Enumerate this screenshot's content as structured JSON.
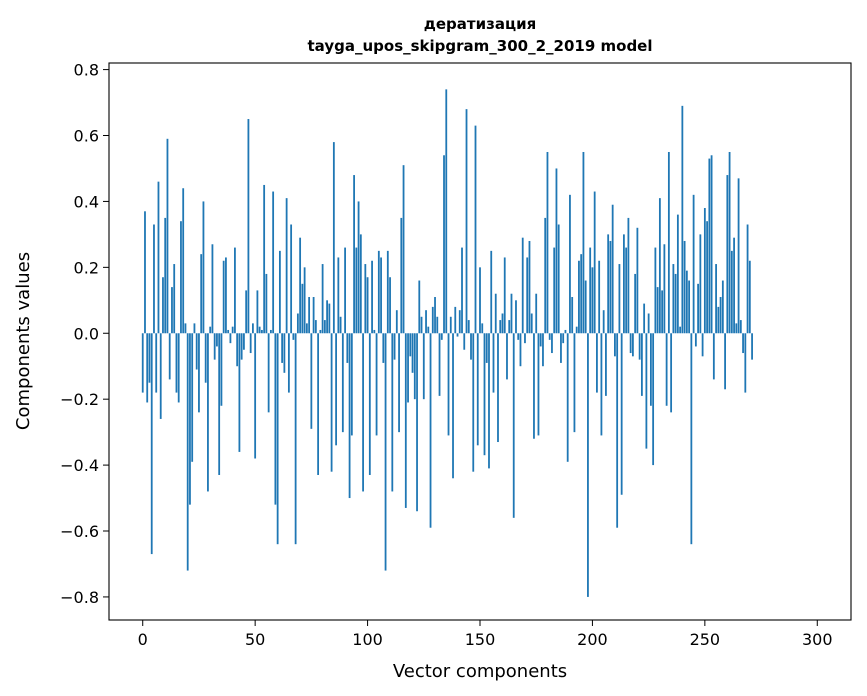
{
  "chart_data": {
    "type": "bar",
    "title_line1": "дератизация",
    "title_line2": "tayga_upos_skipgram_300_2_2019 model",
    "xlabel": "Vector components",
    "ylabel": "Components values",
    "xlim": [
      -15,
      315
    ],
    "ylim": [
      -0.87,
      0.82
    ],
    "xticks": [
      0,
      50,
      100,
      150,
      200,
      250,
      300
    ],
    "yticks": [
      -0.8,
      -0.6,
      -0.4,
      -0.2,
      0.0,
      0.2,
      0.4,
      0.6,
      0.8
    ],
    "ytick_labels": [
      "−0.8",
      "−0.6",
      "−0.4",
      "−0.2",
      "0.0",
      "0.2",
      "0.4",
      "0.6",
      "0.8"
    ],
    "bar_color": "#1f77b4",
    "grid": false,
    "values": [
      -0.18,
      0.37,
      -0.21,
      -0.15,
      -0.67,
      0.33,
      -0.18,
      0.46,
      -0.26,
      0.17,
      0.35,
      0.59,
      -0.14,
      0.14,
      0.21,
      -0.18,
      -0.21,
      0.34,
      0.44,
      0.03,
      -0.72,
      -0.52,
      -0.39,
      0.03,
      -0.11,
      -0.24,
      0.24,
      0.4,
      -0.15,
      -0.48,
      0.02,
      0.27,
      -0.08,
      -0.04,
      -0.43,
      -0.22,
      0.22,
      0.23,
      0.01,
      -0.03,
      0.02,
      0.26,
      -0.1,
      -0.36,
      -0.08,
      -0.05,
      0.13,
      0.65,
      -0.06,
      0.03,
      -0.38,
      0.13,
      0.02,
      0.01,
      0.45,
      0.18,
      -0.24,
      0.01,
      0.43,
      -0.52,
      -0.64,
      0.25,
      -0.09,
      -0.12,
      0.41,
      -0.18,
      0.33,
      -0.02,
      -0.64,
      0.06,
      0.29,
      0.15,
      0.2,
      0.03,
      0.11,
      -0.29,
      0.11,
      0.04,
      -0.43,
      0.01,
      0.21,
      0.04,
      0.1,
      0.09,
      -0.42,
      0.58,
      -0.34,
      0.23,
      0.05,
      -0.3,
      0.26,
      -0.09,
      -0.5,
      -0.31,
      0.48,
      0.26,
      0.4,
      0.3,
      -0.48,
      0.21,
      0.17,
      -0.43,
      0.22,
      0.01,
      -0.31,
      0.25,
      0.23,
      -0.09,
      -0.72,
      0.25,
      0.17,
      -0.48,
      -0.08,
      0.07,
      -0.3,
      0.35,
      0.51,
      -0.53,
      -0.21,
      -0.07,
      -0.12,
      -0.2,
      -0.54,
      0.16,
      0.05,
      -0.2,
      0.07,
      0.02,
      -0.59,
      0.08,
      0.11,
      0.05,
      -0.19,
      -0.02,
      0.54,
      0.74,
      -0.31,
      0.05,
      -0.44,
      0.08,
      -0.01,
      0.07,
      0.26,
      -0.05,
      0.68,
      0.04,
      -0.08,
      -0.42,
      0.63,
      -0.34,
      0.2,
      0.03,
      -0.37,
      -0.09,
      -0.41,
      0.25,
      -0.18,
      0.12,
      -0.33,
      0.04,
      0.06,
      0.23,
      -0.14,
      0.04,
      0.12,
      -0.56,
      0.1,
      -0.02,
      -0.1,
      0.29,
      -0.03,
      0.23,
      0.28,
      0.06,
      -0.32,
      0.12,
      -0.31,
      -0.04,
      -0.1,
      0.35,
      0.55,
      -0.02,
      -0.06,
      0.26,
      0.5,
      0.33,
      -0.09,
      -0.03,
      0.01,
      -0.39,
      0.42,
      0.11,
      -0.3,
      0.02,
      0.22,
      0.24,
      0.55,
      0.16,
      -0.8,
      0.26,
      0.2,
      0.43,
      -0.18,
      0.22,
      -0.31,
      0.07,
      -0.19,
      0.3,
      0.28,
      0.39,
      -0.07,
      -0.59,
      0.21,
      -0.49,
      0.3,
      0.26,
      0.35,
      -0.06,
      -0.07,
      0.18,
      0.32,
      -0.08,
      -0.19,
      0.09,
      -0.35,
      0.06,
      -0.22,
      -0.4,
      0.26,
      0.14,
      0.41,
      0.13,
      0.27,
      -0.22,
      0.55,
      -0.24,
      0.21,
      0.18,
      0.36,
      0.02,
      0.69,
      0.28,
      0.19,
      0.16,
      -0.64,
      0.42,
      -0.04,
      0.15,
      0.3,
      -0.07,
      0.38,
      0.34,
      0.53,
      0.54,
      -0.14,
      0.21,
      0.08,
      0.11,
      0.16,
      -0.17,
      0.48,
      0.55,
      0.25,
      0.29,
      0.03,
      0.47,
      0.04,
      -0.06,
      -0.18,
      0.33,
      0.22,
      -0.08
    ]
  }
}
